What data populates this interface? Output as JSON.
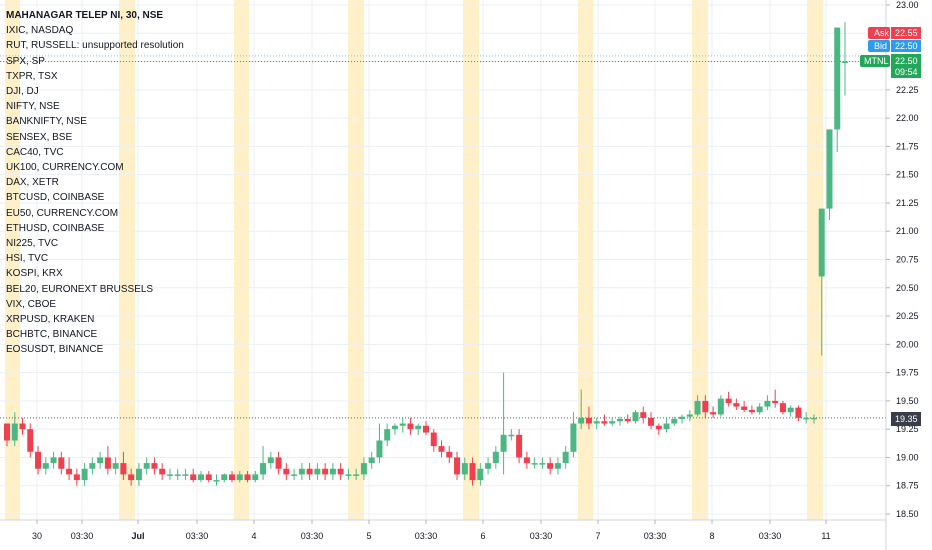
{
  "colors": {
    "up": "#4cb782",
    "down": "#ef4050",
    "session": "#fff0c8",
    "grid": "#eceff3",
    "ask": "#ef4050",
    "bid": "#2d9cf0",
    "last": "#22a65a",
    "dark": "#3a3e4a"
  },
  "legend": {
    "main": "MAHANAGAR TELEP NI, 30, NSE",
    "items": [
      "IXIC, NASDAQ",
      "RUT, RUSSELL: unsupported resolution",
      "SPX, SP",
      "TXPR, TSX",
      "DJI, DJ",
      "NIFTY, NSE",
      "BANKNIFTY, NSE",
      "SENSEX, BSE",
      "CAC40, TVC",
      "UK100, CURRENCY.COM",
      "DAX, XETR",
      "BTCUSD, COINBASE",
      "EU50, CURRENCY.COM",
      "ETHUSD, COINBASE",
      "NI225, TVC",
      "HSI, TVC",
      "KOSPI, KRX",
      "BEL20, EURONEXT BRUSSELS",
      "VIX, CBOE",
      "XRPUSD, KRAKEN",
      "BCHBTC, BINANCE",
      "EOSUSDT, BINANCE"
    ]
  },
  "price_tags": {
    "ask_label": "Ask",
    "ask_value": "22.55",
    "bid_label": "Bid",
    "bid_value": "22.50",
    "symbol_label": "MTNL",
    "last_value": "22.50",
    "countdown": "09:54",
    "ref_value": "19.35"
  },
  "chart_data": {
    "type": "candlestick",
    "ylim": [
      18.4,
      23.05
    ],
    "y_ticks": [
      "23.00",
      "22.75",
      "22.50",
      "22.25",
      "22.00",
      "21.75",
      "21.50",
      "21.25",
      "21.00",
      "20.75",
      "20.50",
      "20.25",
      "20.00",
      "19.75",
      "19.50",
      "19.25",
      "19.00",
      "18.75",
      "18.50"
    ],
    "x_ticks": [
      {
        "label": "30",
        "bold": false
      },
      {
        "label": "03:30",
        "bold": false
      },
      {
        "label": "Jul",
        "bold": true
      },
      {
        "label": "03:30",
        "bold": false
      },
      {
        "label": "4",
        "bold": false
      },
      {
        "label": "03:30",
        "bold": false
      },
      {
        "label": "5",
        "bold": false
      },
      {
        "label": "03:30",
        "bold": false
      },
      {
        "label": "6",
        "bold": false
      },
      {
        "label": "03:30",
        "bold": false
      },
      {
        "label": "7",
        "bold": false
      },
      {
        "label": "03:30",
        "bold": false
      },
      {
        "label": "8",
        "bold": false
      },
      {
        "label": "03:30",
        "bold": false
      },
      {
        "label": "11",
        "bold": false
      }
    ],
    "ref_line": 19.35,
    "last_price": 22.5,
    "candles": [
      [
        19.3,
        19.3,
        19.1,
        19.15
      ],
      [
        19.15,
        19.4,
        19.1,
        19.3
      ],
      [
        19.3,
        19.35,
        19.2,
        19.25
      ],
      [
        19.25,
        19.3,
        19.0,
        19.05
      ],
      [
        19.05,
        19.1,
        18.85,
        18.9
      ],
      [
        18.9,
        19.0,
        18.85,
        18.95
      ],
      [
        18.95,
        19.05,
        18.9,
        19.0
      ],
      [
        19.0,
        19.05,
        18.85,
        18.9
      ],
      [
        18.9,
        19.0,
        18.8,
        18.85
      ],
      [
        18.85,
        18.9,
        18.75,
        18.8
      ],
      [
        18.8,
        18.95,
        18.75,
        18.9
      ],
      [
        18.9,
        19.0,
        18.85,
        18.95
      ],
      [
        18.95,
        19.05,
        18.9,
        19.0
      ],
      [
        19.0,
        19.1,
        18.85,
        18.9
      ],
      [
        18.9,
        19.0,
        18.85,
        18.95
      ],
      [
        18.95,
        19.05,
        18.8,
        18.85
      ],
      [
        18.85,
        18.9,
        18.75,
        18.8
      ],
      [
        18.8,
        18.95,
        18.75,
        18.9
      ],
      [
        18.9,
        19.0,
        18.85,
        18.95
      ],
      [
        18.95,
        19.0,
        18.85,
        18.9
      ],
      [
        18.9,
        18.95,
        18.8,
        18.85
      ],
      [
        18.85,
        18.9,
        18.8,
        18.85
      ],
      [
        18.85,
        18.9,
        18.8,
        18.85
      ],
      [
        18.85,
        18.9,
        18.8,
        18.85
      ],
      [
        18.85,
        18.9,
        18.78,
        18.8
      ],
      [
        18.8,
        18.88,
        18.78,
        18.85
      ],
      [
        18.85,
        18.88,
        18.78,
        18.8
      ],
      [
        18.8,
        18.85,
        18.75,
        18.8
      ],
      [
        18.8,
        18.86,
        18.78,
        18.85
      ],
      [
        18.85,
        18.88,
        18.78,
        18.8
      ],
      [
        18.8,
        18.88,
        18.78,
        18.85
      ],
      [
        18.85,
        18.88,
        18.78,
        18.8
      ],
      [
        18.8,
        18.88,
        18.78,
        18.85
      ],
      [
        18.85,
        19.1,
        18.8,
        18.95
      ],
      [
        18.95,
        19.05,
        18.9,
        19.0
      ],
      [
        19.0,
        19.05,
        18.85,
        18.9
      ],
      [
        18.9,
        18.95,
        18.8,
        18.85
      ],
      [
        18.85,
        18.9,
        18.8,
        18.85
      ],
      [
        18.85,
        18.95,
        18.8,
        18.9
      ],
      [
        18.9,
        18.95,
        18.8,
        18.85
      ],
      [
        18.85,
        18.95,
        18.8,
        18.9
      ],
      [
        18.9,
        18.95,
        18.8,
        18.85
      ],
      [
        18.85,
        18.95,
        18.8,
        18.9
      ],
      [
        18.9,
        18.95,
        18.8,
        18.85
      ],
      [
        18.85,
        18.9,
        18.8,
        18.85
      ],
      [
        18.85,
        18.9,
        18.8,
        18.85
      ],
      [
        18.85,
        19.0,
        18.8,
        18.95
      ],
      [
        18.95,
        19.05,
        18.9,
        19.0
      ],
      [
        19.0,
        19.3,
        18.95,
        19.15
      ],
      [
        19.15,
        19.3,
        19.1,
        19.25
      ],
      [
        19.25,
        19.3,
        19.2,
        19.28
      ],
      [
        19.28,
        19.35,
        19.22,
        19.3
      ],
      [
        19.3,
        19.35,
        19.2,
        19.25
      ],
      [
        19.25,
        19.3,
        19.2,
        19.28
      ],
      [
        19.28,
        19.32,
        19.2,
        19.22
      ],
      [
        19.22,
        19.25,
        19.05,
        19.1
      ],
      [
        19.1,
        19.15,
        19.0,
        19.05
      ],
      [
        19.05,
        19.1,
        18.95,
        19.0
      ],
      [
        19.0,
        19.05,
        18.8,
        18.85
      ],
      [
        18.85,
        19.0,
        18.8,
        18.95
      ],
      [
        18.95,
        19.0,
        18.75,
        18.8
      ],
      [
        18.8,
        18.95,
        18.75,
        18.9
      ],
      [
        18.9,
        19.0,
        18.85,
        18.95
      ],
      [
        18.95,
        19.1,
        18.9,
        19.05
      ],
      [
        19.05,
        19.75,
        18.85,
        19.2
      ],
      [
        19.2,
        19.25,
        19.15,
        19.2
      ],
      [
        19.2,
        19.25,
        18.95,
        19.0
      ],
      [
        19.0,
        19.05,
        18.9,
        18.95
      ],
      [
        18.95,
        19.0,
        18.9,
        18.95
      ],
      [
        18.95,
        19.0,
        18.9,
        18.95
      ],
      [
        18.95,
        19.0,
        18.85,
        18.9
      ],
      [
        18.9,
        19.0,
        18.85,
        18.95
      ],
      [
        18.95,
        19.1,
        18.9,
        19.05
      ],
      [
        19.05,
        19.4,
        19.0,
        19.3
      ],
      [
        19.3,
        19.6,
        19.25,
        19.35
      ],
      [
        19.35,
        19.45,
        19.25,
        19.3
      ],
      [
        19.3,
        19.35,
        19.25,
        19.32
      ],
      [
        19.32,
        19.38,
        19.28,
        19.3
      ],
      [
        19.3,
        19.35,
        19.28,
        19.32
      ],
      [
        19.32,
        19.36,
        19.28,
        19.34
      ],
      [
        19.34,
        19.38,
        19.3,
        19.32
      ],
      [
        19.32,
        19.42,
        19.3,
        19.4
      ],
      [
        19.4,
        19.45,
        19.3,
        19.35
      ],
      [
        19.35,
        19.4,
        19.25,
        19.28
      ],
      [
        19.28,
        19.3,
        19.2,
        19.25
      ],
      [
        19.25,
        19.35,
        19.22,
        19.3
      ],
      [
        19.3,
        19.36,
        19.28,
        19.34
      ],
      [
        19.34,
        19.38,
        19.3,
        19.36
      ],
      [
        19.36,
        19.42,
        19.32,
        19.38
      ],
      [
        19.38,
        19.55,
        19.36,
        19.5
      ],
      [
        19.5,
        19.55,
        19.35,
        19.4
      ],
      [
        19.4,
        19.45,
        19.35,
        19.38
      ],
      [
        19.38,
        19.55,
        19.36,
        19.52
      ],
      [
        19.52,
        19.58,
        19.45,
        19.48
      ],
      [
        19.48,
        19.52,
        19.42,
        19.45
      ],
      [
        19.45,
        19.5,
        19.4,
        19.42
      ],
      [
        19.42,
        19.46,
        19.38,
        19.4
      ],
      [
        19.4,
        19.48,
        19.38,
        19.45
      ],
      [
        19.45,
        19.55,
        19.42,
        19.5
      ],
      [
        19.5,
        19.6,
        19.44,
        19.48
      ],
      [
        19.48,
        19.5,
        19.38,
        19.4
      ],
      [
        19.4,
        19.46,
        19.36,
        19.44
      ],
      [
        19.44,
        19.46,
        19.32,
        19.35
      ],
      [
        19.35,
        19.4,
        19.3,
        19.35
      ],
      [
        19.35,
        19.38,
        19.3,
        19.35
      ],
      [
        20.6,
        21.2,
        19.9,
        21.2
      ],
      [
        21.2,
        21.9,
        21.1,
        21.9
      ],
      [
        21.9,
        22.8,
        21.7,
        22.8
      ],
      [
        22.5,
        22.85,
        22.2,
        22.5
      ]
    ]
  }
}
